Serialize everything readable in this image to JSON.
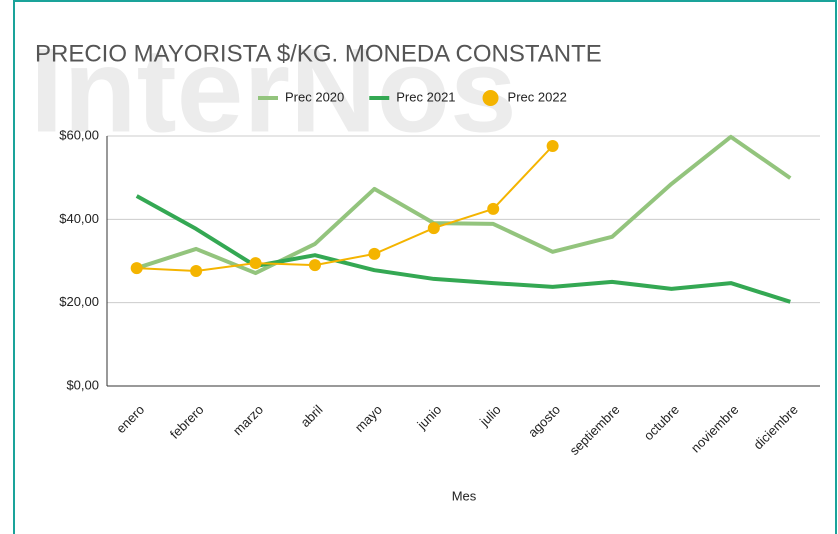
{
  "chart_data": {
    "type": "line",
    "title": "PRECIO MAYORISTA $/KG. MONEDA CONSTANTE",
    "watermark": "InterNos",
    "x_label": "Mes",
    "categories": [
      "enero",
      "febrero",
      "marzo",
      "abril",
      "mayo",
      "junio",
      "julio",
      "agosto",
      "septiembre",
      "octubre",
      "noviembre",
      "diciembre"
    ],
    "series": [
      {
        "name": "Prec 2020",
        "color": "#93c47d",
        "values": [
          28.3,
          32.9,
          27.1,
          34.1,
          47.3,
          39.1,
          38.9,
          32.2,
          35.8,
          48.5,
          59.8,
          49.9
        ]
      },
      {
        "name": "Prec 2021",
        "color": "#34a853",
        "values": [
          45.6,
          37.7,
          28.8,
          31.4,
          27.8,
          25.7,
          24.7,
          23.8,
          25.0,
          23.3,
          24.7,
          20.2
        ]
      },
      {
        "name": "Prec 2022",
        "color": "#f4b400",
        "marker": "circle",
        "values": [
          28.3,
          27.6,
          29.5,
          29.0,
          31.7,
          37.9,
          42.5,
          57.6,
          null,
          null,
          null,
          null
        ]
      }
    ],
    "ylim": [
      0,
      60
    ],
    "yticks": [
      {
        "value": 0,
        "label": "$0,00"
      },
      {
        "value": 20,
        "label": "$20,00"
      },
      {
        "value": 40,
        "label": "$40,00"
      },
      {
        "value": 60,
        "label": "$60,00"
      }
    ],
    "grid": true,
    "legend": "top"
  }
}
